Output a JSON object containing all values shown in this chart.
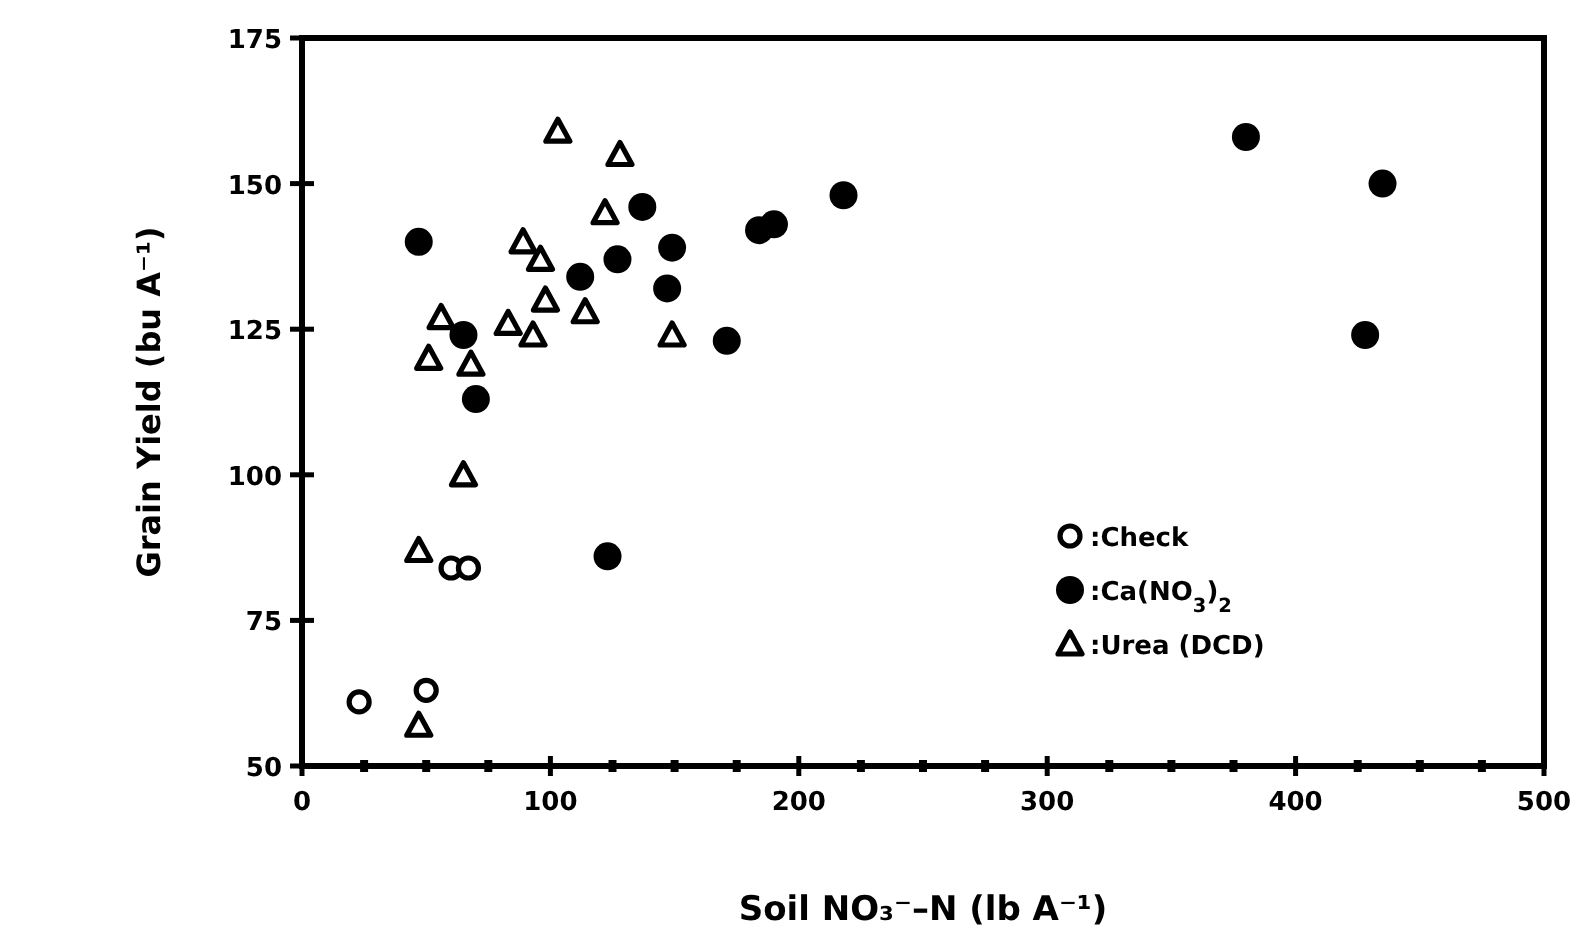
{
  "chart_data": {
    "type": "scatter",
    "xlabel": "Soil NO₃⁻–N (lb A⁻¹)",
    "ylabel": "Grain Yield (bu A⁻¹)",
    "xlim": [
      0,
      500
    ],
    "ylim": [
      50,
      175
    ],
    "xticks": [
      0,
      {
        "value": 25,
        "label": null
      },
      {
        "value": 50,
        "label": null
      },
      {
        "value": 75,
        "label": null
      },
      100,
      {
        "value": 125,
        "label": null
      },
      {
        "value": 150,
        "label": null
      },
      {
        "value": 175,
        "label": null
      },
      200,
      {
        "value": 225,
        "label": null
      },
      {
        "value": 250,
        "label": null
      },
      {
        "value": 275,
        "label": null
      },
      300,
      {
        "value": 325,
        "label": null
      },
      {
        "value": 350,
        "label": null
      },
      {
        "value": 375,
        "label": null
      },
      400,
      {
        "value": 425,
        "label": null
      },
      {
        "value": 450,
        "label": null
      },
      {
        "value": 475,
        "label": null
      },
      500
    ],
    "yticks": [
      50,
      75,
      100,
      125,
      150,
      175
    ],
    "grid": false,
    "legend": "bottom right",
    "series": [
      {
        "name": ":Check",
        "color": "#000000",
        "marker": "circle-open",
        "x": [
          23,
          50,
          60,
          67
        ],
        "values": [
          61,
          63,
          84,
          84
        ]
      },
      {
        "name": ":Ca(NO$_{3}$)$_{2}$",
        "color": "#000000",
        "marker": "circle",
        "x": [
          47,
          65,
          70,
          112,
          127,
          137,
          149,
          147,
          171,
          184,
          190,
          218,
          123,
          380,
          435,
          428
        ],
        "values": [
          140,
          124,
          113,
          134,
          137,
          146,
          139,
          132,
          123,
          142,
          143,
          148,
          86,
          158,
          150,
          124
        ]
      },
      {
        "name": ":Urea (DCD)",
        "color": "#000000",
        "marker": "triangle-open",
        "x": [
          103,
          128,
          122,
          89,
          96,
          98,
          114,
          83,
          56,
          93,
          149,
          51,
          68,
          65,
          47,
          47
        ],
        "values": [
          159,
          155,
          145,
          140,
          137,
          130,
          128,
          126,
          127,
          124,
          124,
          120,
          119,
          100,
          87,
          57
        ]
      }
    ]
  }
}
